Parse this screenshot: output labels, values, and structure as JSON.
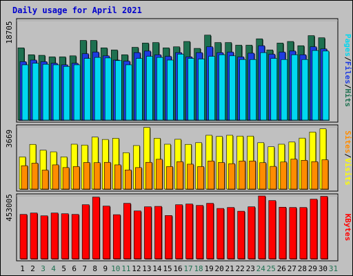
{
  "title": "Daily usage for April 2021",
  "colors": {
    "hits": "#1e7050",
    "files": "#1e3ce0",
    "pages": "#00d8f0",
    "visits": "#ffff00",
    "sites": "#ff8c00",
    "kbytes": "#ff0000",
    "background": "#c0c0c0",
    "weekend_label": "#1e7050",
    "weekday_label": "#000000"
  },
  "chart_data": [
    {
      "type": "bar",
      "panel": "hits-files-pages",
      "categories": [
        "1",
        "2",
        "3",
        "4",
        "5",
        "6",
        "7",
        "8",
        "9",
        "10",
        "11",
        "12",
        "13",
        "14",
        "15",
        "16",
        "17",
        "18",
        "19",
        "20",
        "21",
        "22",
        "23",
        "24",
        "25",
        "26",
        "27",
        "28",
        "29",
        "30",
        "31"
      ],
      "y_tick_label": "18705",
      "ylim": [
        0,
        18705
      ],
      "legend_labels": [
        "Pages",
        "Files",
        "Hits"
      ],
      "series": [
        {
          "name": "Hits",
          "values": [
            13600,
            12300,
            12200,
            11900,
            11900,
            12100,
            15000,
            15000,
            13600,
            13200,
            12300,
            13700,
            14500,
            14600,
            13600,
            13800,
            14800,
            13500,
            16000,
            14600,
            14600,
            14100,
            14100,
            15300,
            13200,
            14500,
            14800,
            14000,
            15900,
            15500,
            0
          ]
        },
        {
          "name": "Files",
          "values": [
            11000,
            11300,
            11000,
            10700,
            10400,
            10700,
            12500,
            12800,
            12100,
            11300,
            11100,
            12700,
            13000,
            12300,
            12000,
            12700,
            11900,
            12700,
            13800,
            12700,
            12800,
            11900,
            12600,
            14000,
            12400,
            12800,
            13000,
            12300,
            13800,
            13400,
            0
          ]
        },
        {
          "name": "Pages",
          "values": [
            10400,
            10700,
            10500,
            10400,
            10100,
            10400,
            11600,
            11800,
            11700,
            11200,
            10400,
            11600,
            12000,
            11800,
            11300,
            12400,
            11600,
            11500,
            12000,
            12300,
            12100,
            11400,
            11400,
            12700,
            11600,
            11400,
            12300,
            11400,
            13100,
            13000,
            0
          ]
        }
      ]
    },
    {
      "type": "bar",
      "panel": "visits-sites",
      "categories": [
        "1",
        "2",
        "3",
        "4",
        "5",
        "6",
        "7",
        "8",
        "9",
        "10",
        "11",
        "12",
        "13",
        "14",
        "15",
        "16",
        "17",
        "18",
        "19",
        "20",
        "21",
        "22",
        "23",
        "24",
        "25",
        "26",
        "27",
        "28",
        "29",
        "30",
        "31"
      ],
      "y_tick_label": "3669",
      "ylim": [
        0,
        3669
      ],
      "legend_labels": [
        "Sites",
        "Visits"
      ],
      "series": [
        {
          "name": "Visits",
          "values": [
            1900,
            2640,
            2300,
            2200,
            1900,
            2650,
            2600,
            3070,
            2930,
            3000,
            2150,
            2570,
            3640,
            3000,
            2650,
            2940,
            2640,
            2740,
            3180,
            3110,
            3180,
            3130,
            3130,
            2740,
            2500,
            2650,
            2780,
            3010,
            3370,
            3560,
            0
          ]
        },
        {
          "name": "Sites",
          "values": [
            1380,
            1530,
            1120,
            1430,
            1270,
            1330,
            1570,
            1560,
            1580,
            1430,
            1130,
            1270,
            1580,
            1760,
            1330,
            1620,
            1470,
            1330,
            1660,
            1570,
            1500,
            1660,
            1660,
            1560,
            1340,
            1600,
            1770,
            1700,
            1620,
            1730,
            0
          ]
        }
      ]
    },
    {
      "type": "bar",
      "panel": "kbytes",
      "categories": [
        "1",
        "2",
        "3",
        "4",
        "5",
        "6",
        "7",
        "8",
        "9",
        "10",
        "11",
        "12",
        "13",
        "14",
        "15",
        "16",
        "17",
        "18",
        "19",
        "20",
        "21",
        "22",
        "23",
        "24",
        "25",
        "26",
        "27",
        "28",
        "29",
        "30",
        "31"
      ],
      "y_tick_label": "453005",
      "ylim": [
        0,
        453005
      ],
      "legend_labels": [
        "KBytes"
      ],
      "series": [
        {
          "name": "KBytes",
          "values": [
            320000,
            330000,
            310000,
            330000,
            325000,
            320000,
            390000,
            445000,
            380000,
            318000,
            400000,
            345000,
            375000,
            378000,
            312000,
            390000,
            395000,
            385000,
            400000,
            363000,
            370000,
            343000,
            375000,
            453000,
            420000,
            372000,
            370000,
            370000,
            430000,
            450000,
            0
          ]
        }
      ]
    }
  ],
  "x_labels": [
    {
      "label": "1",
      "weekend": false
    },
    {
      "label": "2",
      "weekend": false
    },
    {
      "label": "3",
      "weekend": true
    },
    {
      "label": "4",
      "weekend": true
    },
    {
      "label": "5",
      "weekend": false
    },
    {
      "label": "6",
      "weekend": false
    },
    {
      "label": "7",
      "weekend": false
    },
    {
      "label": "8",
      "weekend": false
    },
    {
      "label": "9",
      "weekend": false
    },
    {
      "label": "10",
      "weekend": true
    },
    {
      "label": "11",
      "weekend": true
    },
    {
      "label": "12",
      "weekend": false
    },
    {
      "label": "13",
      "weekend": false
    },
    {
      "label": "14",
      "weekend": false
    },
    {
      "label": "15",
      "weekend": false
    },
    {
      "label": "16",
      "weekend": false
    },
    {
      "label": "17",
      "weekend": true
    },
    {
      "label": "18",
      "weekend": true
    },
    {
      "label": "19",
      "weekend": false
    },
    {
      "label": "20",
      "weekend": false
    },
    {
      "label": "21",
      "weekend": false
    },
    {
      "label": "22",
      "weekend": false
    },
    {
      "label": "23",
      "weekend": false
    },
    {
      "label": "24",
      "weekend": true
    },
    {
      "label": "25",
      "weekend": true
    },
    {
      "label": "26",
      "weekend": false
    },
    {
      "label": "27",
      "weekend": false
    },
    {
      "label": "28",
      "weekend": false
    },
    {
      "label": "29",
      "weekend": false
    },
    {
      "label": "30",
      "weekend": false
    },
    {
      "label": "31",
      "weekend": true
    }
  ]
}
